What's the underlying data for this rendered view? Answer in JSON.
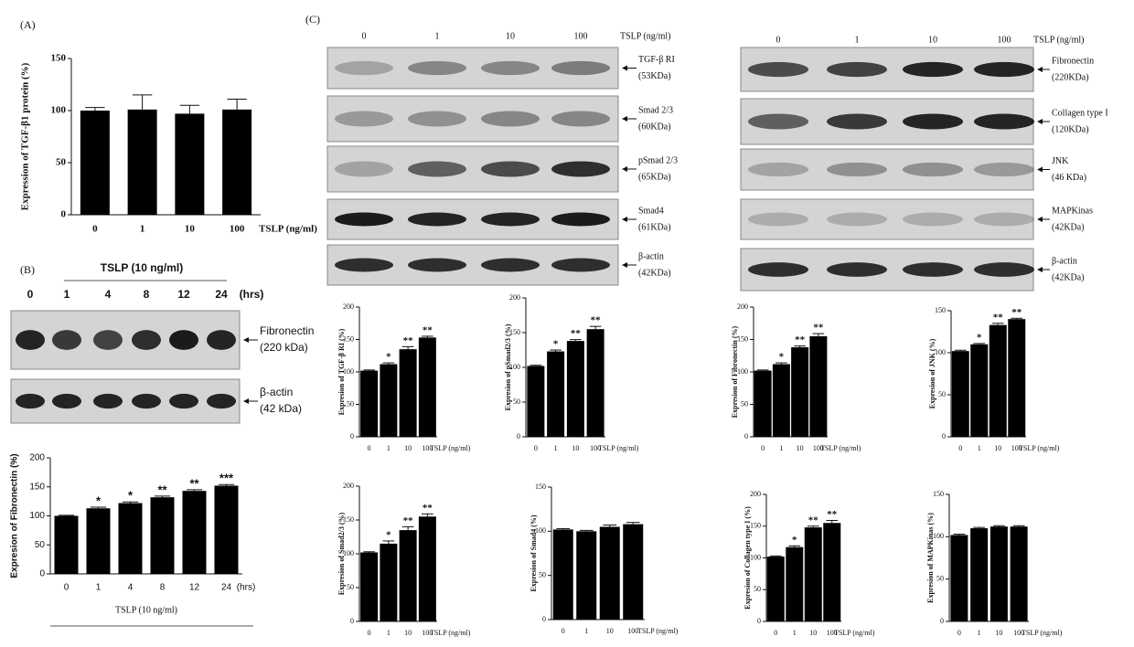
{
  "panel_labels": [
    "(A)",
    "(B)",
    "(C)"
  ],
  "blot_b": {
    "title": "TSLP (10 ng/ml)",
    "lanes": [
      "0",
      "1",
      "4",
      "8",
      "12",
      "24",
      "(hrs)"
    ],
    "rows": [
      {
        "name": "Fibronectin",
        "size": "(220 kDa)"
      },
      {
        "name": "β-actin",
        "size": "(42 kDa)"
      }
    ]
  },
  "blot_c_left": {
    "lanes": [
      "0",
      "1",
      "10",
      "100"
    ],
    "unit": "TSLP (ng/ml)",
    "rows": [
      {
        "name": "TGF-β RI",
        "size": "(53KDa)"
      },
      {
        "name": "Smad 2/3",
        "size": "(60KDa)"
      },
      {
        "name": "pSmad 2/3",
        "size": "(65KDa)"
      },
      {
        "name": "Smad4",
        "size": "(61KDa)"
      },
      {
        "name": "β-actin",
        "size": "(42KDa)"
      }
    ]
  },
  "blot_c_right": {
    "lanes": [
      "0",
      "1",
      "10",
      "100"
    ],
    "unit": "TSLP (ng/ml)",
    "rows": [
      {
        "name": "Fibronectin",
        "size": "(220KDa)"
      },
      {
        "name": "Collagen type I",
        "size": "(120KDa)"
      },
      {
        "name": "JNK",
        "size": "(46 KDa)"
      },
      {
        "name": "MAPKinas",
        "size": "(42KDa)"
      },
      {
        "name": "β-actin",
        "size": "(42KDa)"
      }
    ]
  },
  "chart_data": [
    {
      "type": "bar",
      "y_label": "Expression of TGF-β1 protein (%)",
      "x_label": "TSLP (ng/ml)",
      "categories": [
        "0",
        "1",
        "10",
        "100"
      ],
      "values": [
        100,
        101,
        97,
        101
      ],
      "errors": [
        3,
        14,
        8,
        10
      ],
      "annotations": [
        null,
        null,
        null,
        null
      ],
      "ylim": [
        0,
        150
      ],
      "yticks": [
        0,
        50,
        100,
        150
      ],
      "color": "#000000"
    },
    {
      "type": "bar",
      "y_label": "Expresion of Fibronectin (%)",
      "x_label": "TSLP (10 ng/ml)",
      "x_unit": "(hrs)",
      "categories": [
        "0",
        "1",
        "4",
        "8",
        "12",
        "24"
      ],
      "values": [
        100,
        113,
        122,
        132,
        143,
        152
      ],
      "errors": [
        1,
        2,
        2,
        2,
        2,
        2
      ],
      "annotations": [
        null,
        "*",
        "*",
        "**",
        "**",
        "***"
      ],
      "ylim": [
        0,
        200
      ],
      "yticks": [
        0,
        50,
        100,
        150,
        200
      ],
      "color": "#000000"
    },
    {
      "type": "bar",
      "y_label": "Expresion of TGF-β RI (%)",
      "x_label": "TSLP (ng/ml)",
      "categories": [
        "0",
        "1",
        "10",
        "100"
      ],
      "values": [
        102,
        112,
        135,
        153
      ],
      "errors": [
        1,
        2,
        4,
        2
      ],
      "annotations": [
        null,
        "*",
        "**",
        "**"
      ],
      "ylim": [
        0,
        200
      ],
      "yticks": [
        0,
        50,
        100,
        150,
        200
      ],
      "color": "#000000"
    },
    {
      "type": "bar",
      "y_label": "Expresion of pSmad2/3 (%)",
      "x_label": "TSLP (ng/ml)",
      "categories": [
        "0",
        "1",
        "10",
        "100"
      ],
      "values": [
        102,
        123,
        138,
        155
      ],
      "errors": [
        1,
        2,
        2,
        4
      ],
      "annotations": [
        null,
        "*",
        "**",
        "**"
      ],
      "ylim": [
        0,
        200
      ],
      "yticks": [
        0,
        50,
        100,
        150,
        200
      ],
      "color": "#000000"
    },
    {
      "type": "bar",
      "y_label": "Expresion of Fibronectin (%)",
      "x_label": "TSLP (ng/ml)",
      "categories": [
        "0",
        "1",
        "10",
        "100"
      ],
      "values": [
        102,
        112,
        138,
        155
      ],
      "errors": [
        1,
        2,
        2,
        4
      ],
      "annotations": [
        null,
        "*",
        "**",
        "**"
      ],
      "ylim": [
        0,
        200
      ],
      "yticks": [
        0,
        50,
        100,
        150,
        200
      ],
      "color": "#000000"
    },
    {
      "type": "bar",
      "y_label": "Expresion of JNK (%)",
      "x_label": "TSLP (ng/ml)",
      "categories": [
        "0",
        "1",
        "10",
        "100"
      ],
      "values": [
        102,
        110,
        133,
        140
      ],
      "errors": [
        1,
        1,
        2,
        1
      ],
      "annotations": [
        null,
        "*",
        "**",
        "**"
      ],
      "ylim": [
        0,
        150
      ],
      "yticks": [
        0,
        50,
        100,
        150
      ],
      "color": "#000000"
    },
    {
      "type": "bar",
      "y_label": "Expresion of Smad2/3 (%)",
      "x_label": "TSLP (ng/ml)",
      "categories": [
        "0",
        "1",
        "10",
        "100"
      ],
      "values": [
        102,
        115,
        135,
        155
      ],
      "errors": [
        1,
        4,
        5,
        4
      ],
      "annotations": [
        null,
        "*",
        "**",
        "**"
      ],
      "ylim": [
        0,
        200
      ],
      "yticks": [
        0,
        50,
        100,
        150,
        200
      ],
      "color": "#000000"
    },
    {
      "type": "bar",
      "y_label": "Expresion of Smad4 (%)",
      "x_label": "TSLP (ng/ml)",
      "categories": [
        "0",
        "1",
        "10",
        "100"
      ],
      "values": [
        102,
        100,
        105,
        108
      ],
      "errors": [
        1,
        1,
        2,
        2
      ],
      "annotations": [
        null,
        null,
        null,
        null
      ],
      "ylim": [
        0,
        150
      ],
      "yticks": [
        0,
        50,
        100,
        150
      ],
      "color": "#000000"
    },
    {
      "type": "bar",
      "y_label": "Expresion of Collagen type I (%)",
      "x_label": "TSLP (ng/ml)",
      "categories": [
        "0",
        "1",
        "10",
        "100"
      ],
      "values": [
        102,
        117,
        148,
        155
      ],
      "errors": [
        1,
        2,
        2,
        4
      ],
      "annotations": [
        null,
        "*",
        "**",
        "**"
      ],
      "ylim": [
        0,
        200
      ],
      "yticks": [
        0,
        50,
        100,
        150,
        200
      ],
      "color": "#000000"
    },
    {
      "type": "bar",
      "y_label": "Expresion of MAPKinas (%)",
      "x_label": "TSLP (ng/ml)",
      "categories": [
        "0",
        "1",
        "10",
        "100"
      ],
      "values": [
        102,
        110,
        112,
        112
      ],
      "errors": [
        1,
        1,
        1,
        1
      ],
      "annotations": [
        null,
        null,
        null,
        null
      ],
      "ylim": [
        0,
        150
      ],
      "yticks": [
        0,
        50,
        100,
        150
      ],
      "color": "#000000"
    }
  ]
}
